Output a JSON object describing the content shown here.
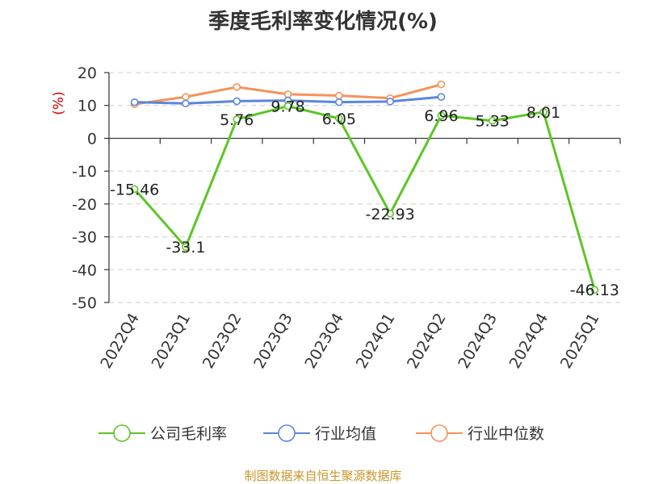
{
  "chart_data": {
    "type": "line",
    "title": "季度毛利率变化情况(%)",
    "ylabel": "(%)",
    "xlabel": "",
    "categories": [
      "2022Q4",
      "2023Q1",
      "2023Q2",
      "2023Q3",
      "2023Q4",
      "2024Q1",
      "2024Q2",
      "2024Q3",
      "2024Q4",
      "2025Q1"
    ],
    "ylim": [
      -50,
      20
    ],
    "yticks": [
      20,
      10,
      0,
      -10,
      -20,
      -30,
      -40,
      -50
    ],
    "grid": true,
    "legend_position": "bottom",
    "series": [
      {
        "name": "公司毛利率",
        "color": "#5cc526",
        "values": [
          -15.46,
          -33.1,
          5.76,
          9.78,
          6.05,
          -22.93,
          6.96,
          5.33,
          8.01,
          -46.13
        ],
        "labels": [
          "-15.46",
          "-33.1",
          "5.76",
          "9.78",
          "6.05",
          "-22.93",
          "6.96",
          "5.33",
          "8.01",
          "-46.13"
        ]
      },
      {
        "name": "行业均值",
        "color": "#5a87dd",
        "values": [
          11.0,
          10.6,
          11.3,
          11.5,
          11.0,
          11.2,
          12.6,
          null,
          null,
          null
        ]
      },
      {
        "name": "行业中位数",
        "color": "#f5925a",
        "values": [
          10.4,
          12.6,
          15.6,
          13.4,
          13.0,
          12.2,
          16.4,
          null,
          null,
          null
        ]
      }
    ],
    "source": "制图数据来自恒生聚源数据库"
  }
}
